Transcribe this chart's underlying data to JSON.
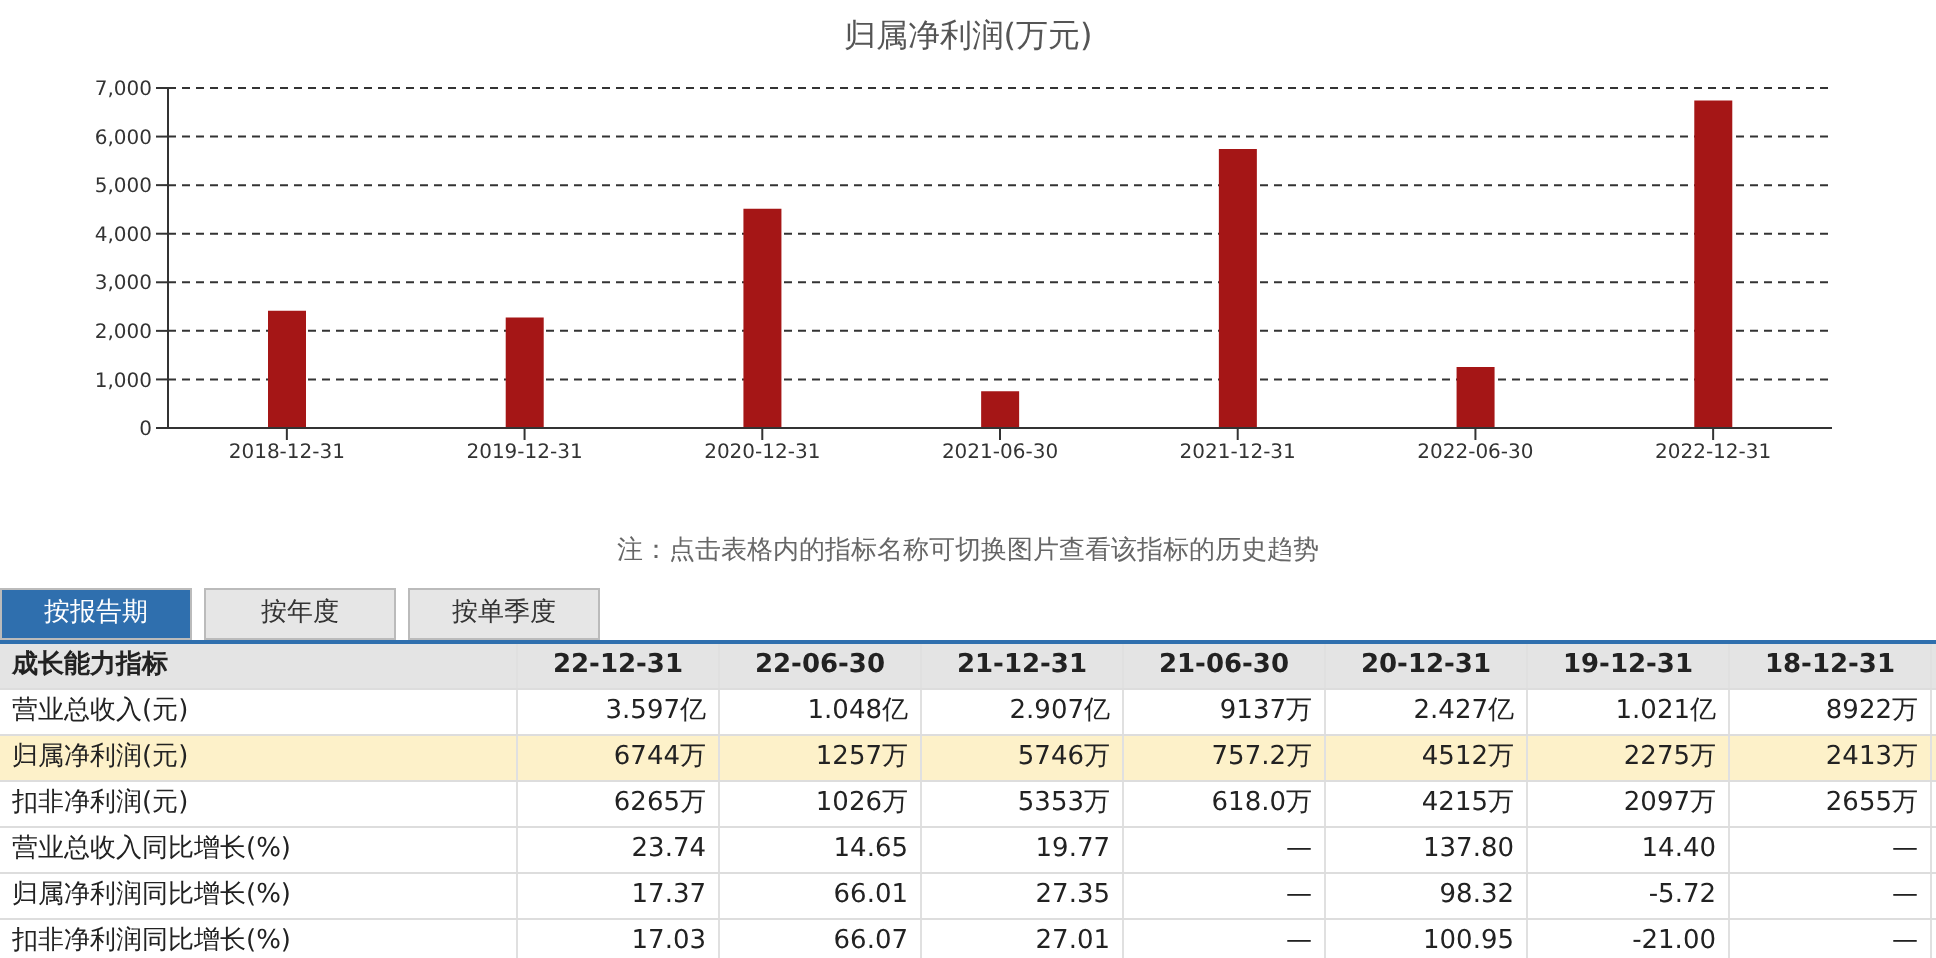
{
  "chart_data": {
    "type": "bar",
    "title": "归属净利润(万元)",
    "categories": [
      "2018-12-31",
      "2019-12-31",
      "2020-12-31",
      "2021-06-30",
      "2021-12-31",
      "2022-06-30",
      "2022-12-31"
    ],
    "values": [
      2413,
      2275,
      4512,
      757.2,
      5746,
      1257,
      6744
    ],
    "color": "#a51616",
    "ylim": [
      0,
      7000
    ],
    "yticks": [
      0,
      {
        "value": 1000,
        "label": "1,000"
      },
      {
        "value": 2000,
        "label": "2,000"
      },
      {
        "value": 3000,
        "label": "3,000"
      },
      {
        "value": 4000,
        "label": "4,000"
      },
      {
        "value": 5000,
        "label": "5,000"
      },
      {
        "value": 6000,
        "label": "6,000"
      },
      {
        "value": 7000,
        "label": "7,000"
      }
    ],
    "grid": "y",
    "annotations": [
      "注：点击表格内的指标名称可切换图片查看该指标的历史趋势",
      "按报告期",
      "按年度",
      "按单季度",
      "成长能力指标",
      "22-12-31",
      "22-06-30",
      "21-12-31",
      "21-06-30",
      "20-12-31",
      "19-12-31",
      "18-12-31",
      "营业总收入(元)",
      "3.597亿",
      "1.048亿",
      "2.907亿",
      "9137万",
      "2.427亿",
      "1.021亿",
      "8922万",
      "归属净利润(元)",
      "6744万",
      "1257万",
      "5746万",
      "757.2万",
      "4512万",
      "2275万",
      "2413万",
      "扣非净利润(元)",
      "6265万",
      "1026万",
      "5353万",
      "618.0万",
      "4215万",
      "2097万",
      "2655万",
      "营业总收入同比增长(%)",
      "23.74",
      "14.65",
      "19.77",
      "—",
      "137.80",
      "14.40",
      "—",
      "归属净利润同比增长(%)",
      "17.37",
      "66.01",
      "27.35",
      "—",
      "98.32",
      "-5.72",
      "—",
      "扣非净利润同比增长(%)",
      "17.03",
      "66.07",
      "27.01",
      "—",
      "100.95",
      "-21.00",
      "—"
    ]
  }
}
